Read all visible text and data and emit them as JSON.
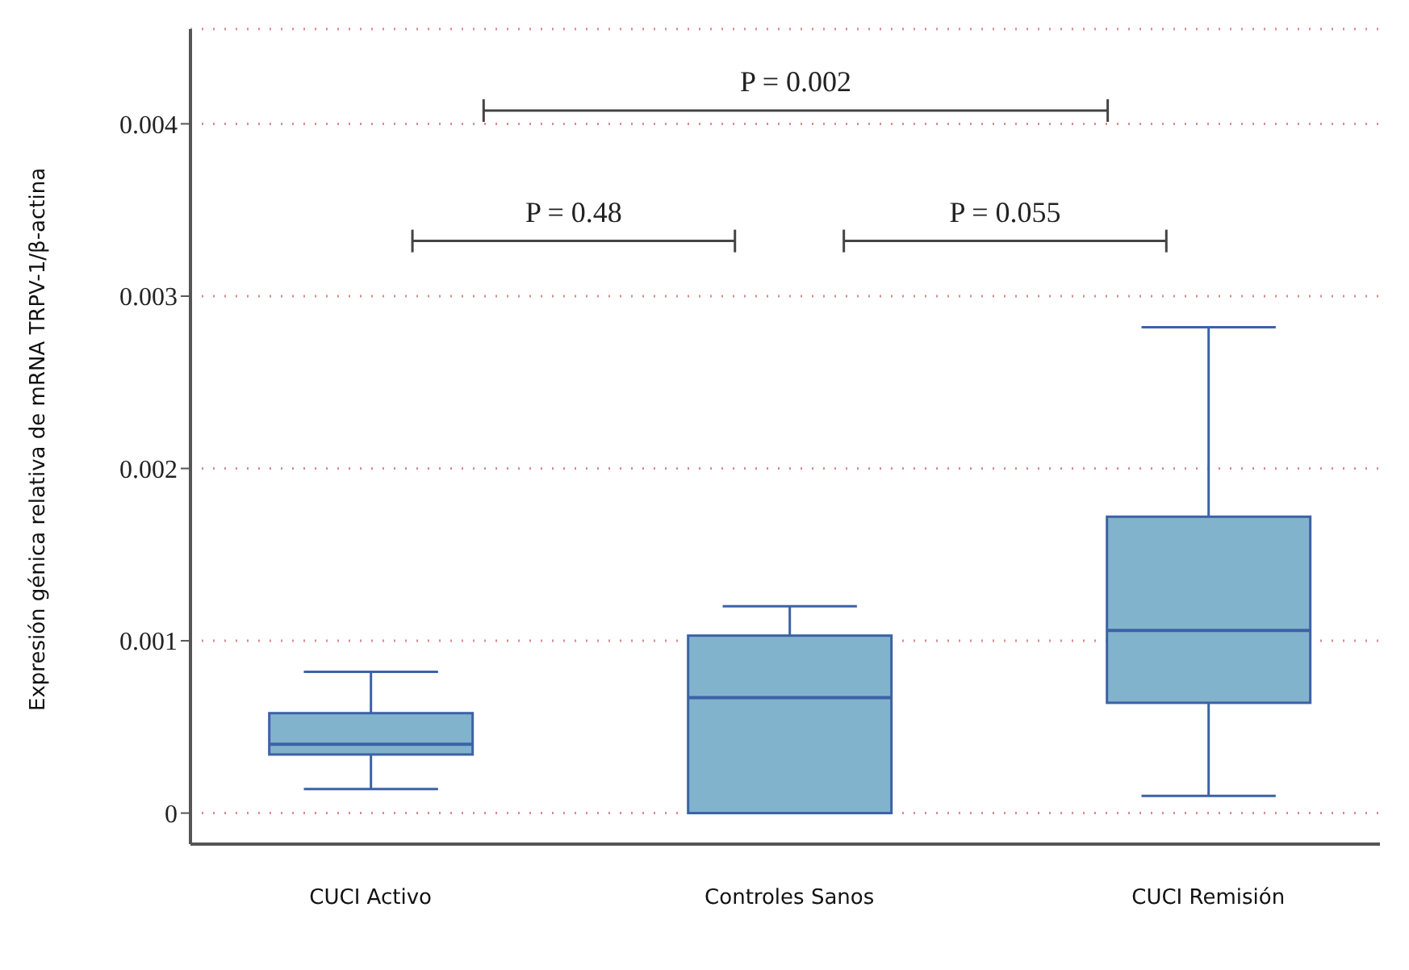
{
  "chart_data": {
    "type": "box",
    "ylabel": "Expresión génica relativa de mRNA TRPV-1/β-actina",
    "categories": [
      "CUCI Activo",
      "Controles Sanos",
      "CUCI Remisión"
    ],
    "boxes": [
      {
        "low": 0.00014,
        "q1": 0.00034,
        "median": 0.0004,
        "q3": 0.00058,
        "high": 0.00082
      },
      {
        "low": 0,
        "q1": 0,
        "median": 0.00067,
        "q3": 0.00103,
        "high": 0.0012
      },
      {
        "low": 0.0001,
        "q1": 0.00064,
        "median": 0.00106,
        "q3": 0.00172,
        "high": 0.00282
      }
    ],
    "color": "#82b3cc",
    "ylim": [
      -0.00018,
      0.00455
    ],
    "yticks": [
      0,
      0.001,
      0.002,
      0.003,
      0.004
    ],
    "grid": "y",
    "annotations": [
      "P = 0.48",
      "P = 0.055",
      "P = 0.002"
    ]
  }
}
